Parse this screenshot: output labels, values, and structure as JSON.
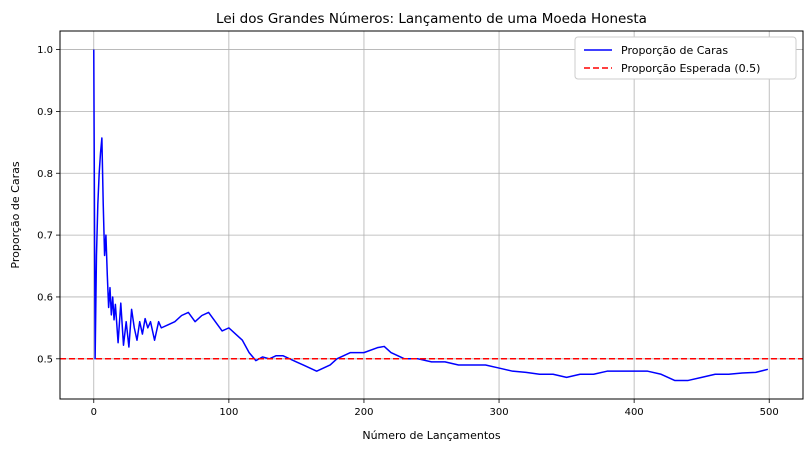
{
  "chart_data": {
    "type": "line",
    "title": "Lei dos Grandes Números: Lançamento de uma Moeda Honesta",
    "xlabel": "Número de Lançamentos",
    "ylabel": "Proporção de Caras",
    "xlim": [
      -25,
      525
    ],
    "ylim": [
      0.435,
      1.03
    ],
    "x_ticks": [
      0,
      100,
      200,
      300,
      400,
      500
    ],
    "y_ticks": [
      0.5,
      0.6,
      0.7,
      0.8,
      0.9,
      1.0
    ],
    "y_tick_labels": [
      "0.5",
      "0.6",
      "0.7",
      "0.8",
      "0.9",
      "1.0"
    ],
    "grid": true,
    "legend_position": "top-right",
    "series": [
      {
        "name": "Proporção de Caras",
        "color": "#0000ff",
        "style": "solid",
        "x": [
          0,
          1,
          2,
          3,
          4,
          5,
          6,
          7,
          8,
          9,
          10,
          11,
          12,
          13,
          14,
          15,
          16,
          18,
          20,
          22,
          24,
          26,
          28,
          30,
          32,
          34,
          36,
          38,
          40,
          42,
          45,
          48,
          50,
          55,
          60,
          65,
          70,
          75,
          80,
          85,
          90,
          95,
          100,
          105,
          110,
          115,
          120,
          125,
          130,
          135,
          140,
          145,
          150,
          155,
          160,
          165,
          170,
          175,
          180,
          185,
          190,
          200,
          210,
          215,
          220,
          230,
          240,
          250,
          260,
          270,
          280,
          290,
          300,
          310,
          320,
          330,
          340,
          350,
          360,
          370,
          380,
          390,
          400,
          410,
          420,
          430,
          440,
          450,
          460,
          470,
          480,
          490,
          499
        ],
        "values": [
          1.0,
          0.5,
          0.667,
          0.75,
          0.8,
          0.833,
          0.857,
          0.75,
          0.667,
          0.7,
          0.636,
          0.583,
          0.615,
          0.571,
          0.6,
          0.563,
          0.588,
          0.526,
          0.59,
          0.522,
          0.56,
          0.519,
          0.58,
          0.55,
          0.53,
          0.56,
          0.54,
          0.565,
          0.55,
          0.56,
          0.53,
          0.56,
          0.55,
          0.555,
          0.56,
          0.57,
          0.575,
          0.56,
          0.57,
          0.575,
          0.56,
          0.545,
          0.55,
          0.54,
          0.53,
          0.51,
          0.497,
          0.503,
          0.5,
          0.505,
          0.505,
          0.5,
          0.495,
          0.49,
          0.485,
          0.48,
          0.485,
          0.49,
          0.5,
          0.505,
          0.51,
          0.51,
          0.518,
          0.52,
          0.51,
          0.5,
          0.5,
          0.495,
          0.495,
          0.49,
          0.49,
          0.49,
          0.485,
          0.48,
          0.478,
          0.475,
          0.475,
          0.47,
          0.475,
          0.475,
          0.48,
          0.48,
          0.48,
          0.48,
          0.475,
          0.465,
          0.465,
          0.47,
          0.475,
          0.475,
          0.477,
          0.478,
          0.483
        ]
      },
      {
        "name": "Proporção Esperada (0.5)",
        "color": "#ff0000",
        "style": "dashed",
        "y_constant": 0.5
      }
    ]
  }
}
